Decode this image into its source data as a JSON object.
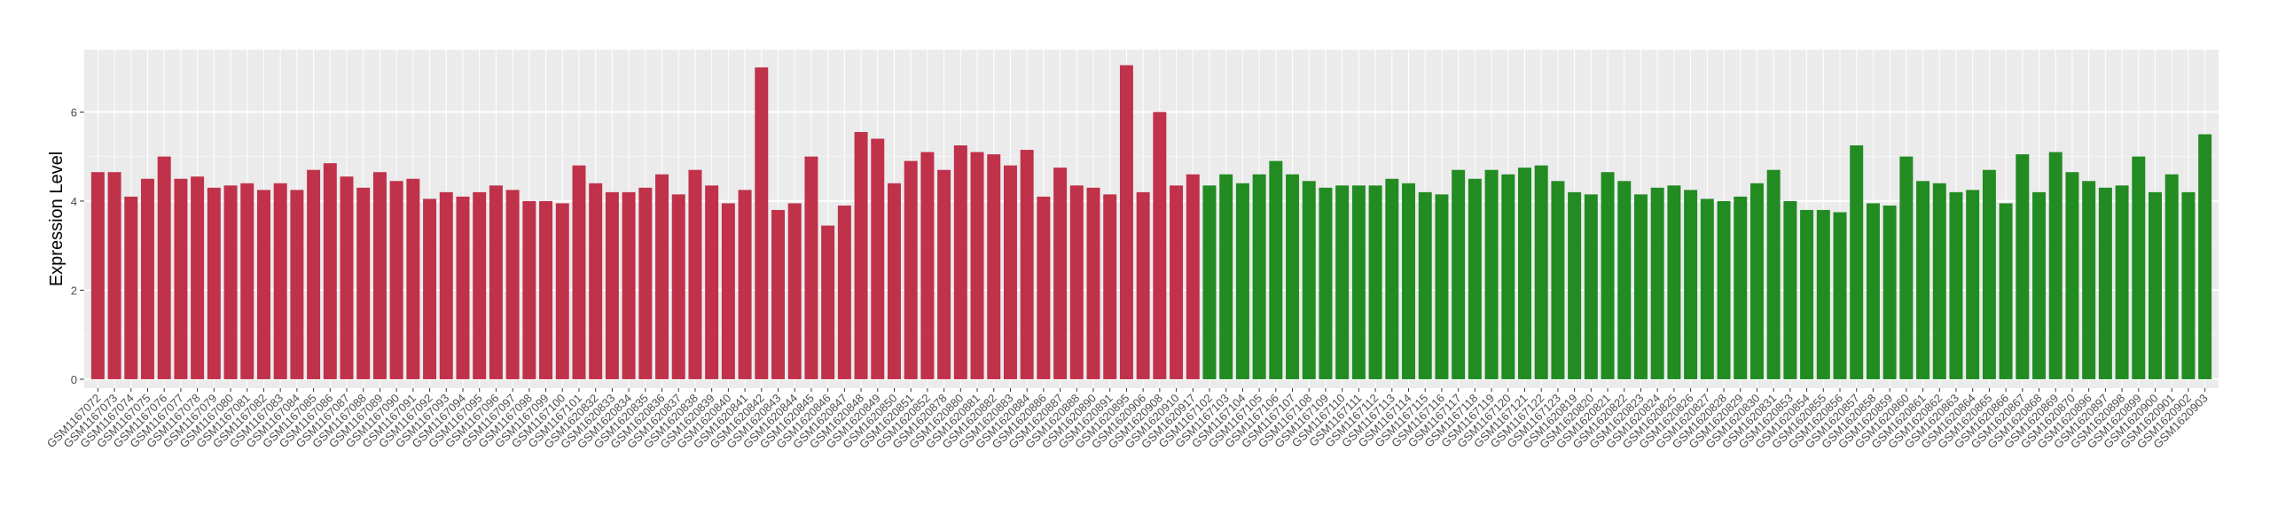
{
  "chart_data": {
    "type": "bar",
    "y_label": "Expression Level",
    "categories": [
      "GSM1167072",
      "GSM1167073",
      "GSM1167074",
      "GSM1167075",
      "GSM1167076",
      "GSM1167077",
      "GSM1167078",
      "GSM1167079",
      "GSM1167080",
      "GSM1167081",
      "GSM1167082",
      "GSM1167083",
      "GSM1167084",
      "GSM1167085",
      "GSM1167086",
      "GSM1167087",
      "GSM1167088",
      "GSM1167089",
      "GSM1167090",
      "GSM1167091",
      "GSM1167092",
      "GSM1167093",
      "GSM1167094",
      "GSM1167095",
      "GSM1167096",
      "GSM1167097",
      "GSM1167098",
      "GSM1167099",
      "GSM1167100",
      "GSM1167101",
      "GSM1620832",
      "GSM1620833",
      "GSM1620834",
      "GSM1620835",
      "GSM1620836",
      "GSM1620837",
      "GSM1620838",
      "GSM1620839",
      "GSM1620840",
      "GSM1620841",
      "GSM1620842",
      "GSM1620843",
      "GSM1620844",
      "GSM1620845",
      "GSM1620846",
      "GSM1620847",
      "GSM1620848",
      "GSM1620849",
      "GSM1620850",
      "GSM1620851",
      "GSM1620852",
      "GSM1620878",
      "GSM1620880",
      "GSM1620881",
      "GSM1620882",
      "GSM1620883",
      "GSM1620884",
      "GSM1620886",
      "GSM1620887",
      "GSM1620888",
      "GSM1620890",
      "GSM1620891",
      "GSM1620895",
      "GSM1620906",
      "GSM1620908",
      "GSM1620910",
      "GSM1620917",
      "GSM1167102",
      "GSM1167103",
      "GSM1167104",
      "GSM1167105",
      "GSM1167106",
      "GSM1167107",
      "GSM1167108",
      "GSM1167109",
      "GSM1167110",
      "GSM1167111",
      "GSM1167112",
      "GSM1167113",
      "GSM1167114",
      "GSM1167115",
      "GSM1167116",
      "GSM1167117",
      "GSM1167118",
      "GSM1167119",
      "GSM1167120",
      "GSM1167121",
      "GSM1167122",
      "GSM1167123",
      "GSM1620819",
      "GSM1620820",
      "GSM1620821",
      "GSM1620822",
      "GSM1620823",
      "GSM1620824",
      "GSM1620825",
      "GSM1620826",
      "GSM1620827",
      "GSM1620828",
      "GSM1620829",
      "GSM1620830",
      "GSM1620831",
      "GSM1620853",
      "GSM1620854",
      "GSM1620855",
      "GSM1620856",
      "GSM1620857",
      "GSM1620858",
      "GSM1620859",
      "GSM1620860",
      "GSM1620861",
      "GSM1620862",
      "GSM1620863",
      "GSM1620864",
      "GSM1620865",
      "GSM1620866",
      "GSM1620867",
      "GSM1620868",
      "GSM1620869",
      "GSM1620870",
      "GSM1620896",
      "GSM1620897",
      "GSM1620898",
      "GSM1620899",
      "GSM1620900",
      "GSM1620901",
      "GSM1620902",
      "GSM1620903"
    ],
    "values": [
      4.65,
      4.65,
      4.1,
      4.5,
      5.0,
      4.5,
      4.55,
      4.3,
      4.35,
      4.4,
      4.25,
      4.4,
      4.25,
      4.7,
      4.85,
      4.55,
      4.3,
      4.65,
      4.45,
      4.5,
      4.05,
      4.2,
      4.1,
      4.2,
      4.35,
      4.25,
      4.0,
      4.0,
      3.95,
      4.8,
      4.4,
      4.2,
      4.2,
      4.3,
      4.6,
      4.15,
      4.7,
      4.35,
      3.95,
      4.25,
      7.0,
      3.8,
      3.95,
      5.0,
      3.45,
      3.9,
      5.55,
      5.4,
      4.4,
      4.9,
      5.1,
      4.7,
      5.25,
      5.1,
      5.05,
      4.8,
      5.15,
      4.1,
      4.75,
      4.35,
      4.3,
      4.15,
      7.05,
      4.2,
      6.0,
      4.35,
      4.6,
      4.35,
      4.6,
      4.4,
      4.6,
      4.9,
      4.6,
      4.45,
      4.3,
      4.35,
      4.35,
      4.35,
      4.5,
      4.4,
      4.2,
      4.15,
      4.7,
      4.5,
      4.7,
      4.6,
      4.75,
      4.8,
      4.45,
      4.2,
      4.15,
      4.65,
      4.45,
      4.15,
      4.3,
      4.35,
      4.25,
      4.05,
      4.0,
      4.1,
      4.4,
      4.7,
      4.0,
      3.8,
      3.8,
      3.75,
      5.25,
      3.95,
      3.9,
      5.0,
      4.45,
      4.4,
      4.2,
      4.25,
      4.7,
      3.95,
      5.05,
      4.2,
      5.1,
      4.65,
      4.45,
      4.3,
      4.35,
      5.0,
      4.2,
      4.6,
      4.2,
      5.5
    ],
    "bar_colors": [
      "#c0314a",
      "#c0314a",
      "#c0314a",
      "#c0314a",
      "#c0314a",
      "#c0314a",
      "#c0314a",
      "#c0314a",
      "#c0314a",
      "#c0314a",
      "#c0314a",
      "#c0314a",
      "#c0314a",
      "#c0314a",
      "#c0314a",
      "#c0314a",
      "#c0314a",
      "#c0314a",
      "#c0314a",
      "#c0314a",
      "#c0314a",
      "#c0314a",
      "#c0314a",
      "#c0314a",
      "#c0314a",
      "#c0314a",
      "#c0314a",
      "#c0314a",
      "#c0314a",
      "#c0314a",
      "#c0314a",
      "#c0314a",
      "#c0314a",
      "#c0314a",
      "#c0314a",
      "#c0314a",
      "#c0314a",
      "#c0314a",
      "#c0314a",
      "#c0314a",
      "#c0314a",
      "#c0314a",
      "#c0314a",
      "#c0314a",
      "#c0314a",
      "#c0314a",
      "#c0314a",
      "#c0314a",
      "#c0314a",
      "#c0314a",
      "#c0314a",
      "#c0314a",
      "#c0314a",
      "#c0314a",
      "#c0314a",
      "#c0314a",
      "#c0314a",
      "#c0314a",
      "#c0314a",
      "#c0314a",
      "#c0314a",
      "#c0314a",
      "#c0314a",
      "#c0314a",
      "#c0314a",
      "#c0314a",
      "#c0314a",
      "#228b22",
      "#228b22",
      "#228b22",
      "#228b22",
      "#228b22",
      "#228b22",
      "#228b22",
      "#228b22",
      "#228b22",
      "#228b22",
      "#228b22",
      "#228b22",
      "#228b22",
      "#228b22",
      "#228b22",
      "#228b22",
      "#228b22",
      "#228b22",
      "#228b22",
      "#228b22",
      "#228b22",
      "#228b22",
      "#228b22",
      "#228b22",
      "#228b22",
      "#228b22",
      "#228b22",
      "#228b22",
      "#228b22",
      "#228b22",
      "#228b22",
      "#228b22",
      "#228b22",
      "#228b22",
      "#228b22",
      "#228b22",
      "#228b22",
      "#228b22",
      "#228b22",
      "#228b22",
      "#228b22",
      "#228b22",
      "#228b22",
      "#228b22",
      "#228b22",
      "#228b22",
      "#228b22",
      "#228b22",
      "#228b22",
      "#228b22",
      "#228b22",
      "#228b22",
      "#228b22",
      "#228b22",
      "#228b22",
      "#228b22",
      "#228b22",
      "#228b22",
      "#228b22",
      "#228b22",
      "#228b22"
    ],
    "ylim": [
      -0.2,
      7.4
    ],
    "yticks": [
      0,
      2,
      4,
      6
    ],
    "grid": true
  }
}
